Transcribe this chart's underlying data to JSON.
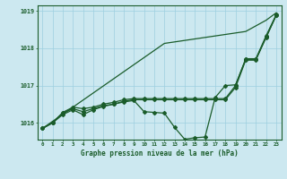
{
  "title": "Graphe pression niveau de la mer (hPa)",
  "background_color": "#cce8f0",
  "line_color": "#1a5c2a",
  "grid_color": "#9ecfdf",
  "xlim": [
    -0.5,
    23.5
  ],
  "ylim": [
    1015.55,
    1019.15
  ],
  "yticks": [
    1016,
    1017,
    1018,
    1019
  ],
  "xticks": [
    0,
    1,
    2,
    3,
    4,
    5,
    6,
    7,
    8,
    9,
    10,
    11,
    12,
    13,
    14,
    15,
    16,
    17,
    18,
    19,
    20,
    21,
    22,
    23
  ],
  "line_diagonal": [
    1015.85,
    1016.04,
    1016.23,
    1016.42,
    1016.61,
    1016.8,
    1016.99,
    1017.18,
    1017.37,
    1017.56,
    1017.75,
    1017.94,
    1018.13,
    1018.17,
    1018.21,
    1018.25,
    1018.29,
    1018.33,
    1018.37,
    1018.41,
    1018.45,
    1018.6,
    1018.75,
    1018.95
  ],
  "line_flat_high": [
    1015.85,
    1016.0,
    1016.28,
    1016.42,
    1016.38,
    1016.42,
    1016.5,
    1016.55,
    1016.62,
    1016.65,
    1016.65,
    1016.65,
    1016.65,
    1016.65,
    1016.65,
    1016.65,
    1016.65,
    1016.65,
    1016.65,
    1017.0,
    1017.72,
    1017.72,
    1018.33,
    1018.9
  ],
  "line_flat_mid": [
    1015.85,
    1016.0,
    1016.26,
    1016.38,
    1016.3,
    1016.38,
    1016.46,
    1016.5,
    1016.58,
    1016.62,
    1016.62,
    1016.62,
    1016.62,
    1016.62,
    1016.62,
    1016.62,
    1016.62,
    1016.62,
    1016.62,
    1016.95,
    1017.68,
    1017.68,
    1018.3,
    1018.88
  ],
  "line_dip": [
    1015.85,
    1016.0,
    1016.22,
    1016.35,
    1016.22,
    1016.35,
    1016.44,
    1016.5,
    1016.56,
    1016.6,
    1016.3,
    1016.28,
    1016.26,
    1015.88,
    1015.56,
    1015.6,
    1015.62,
    1016.68,
    1017.0,
    1017.02,
    1017.7,
    1017.7,
    1018.28,
    1018.88
  ]
}
